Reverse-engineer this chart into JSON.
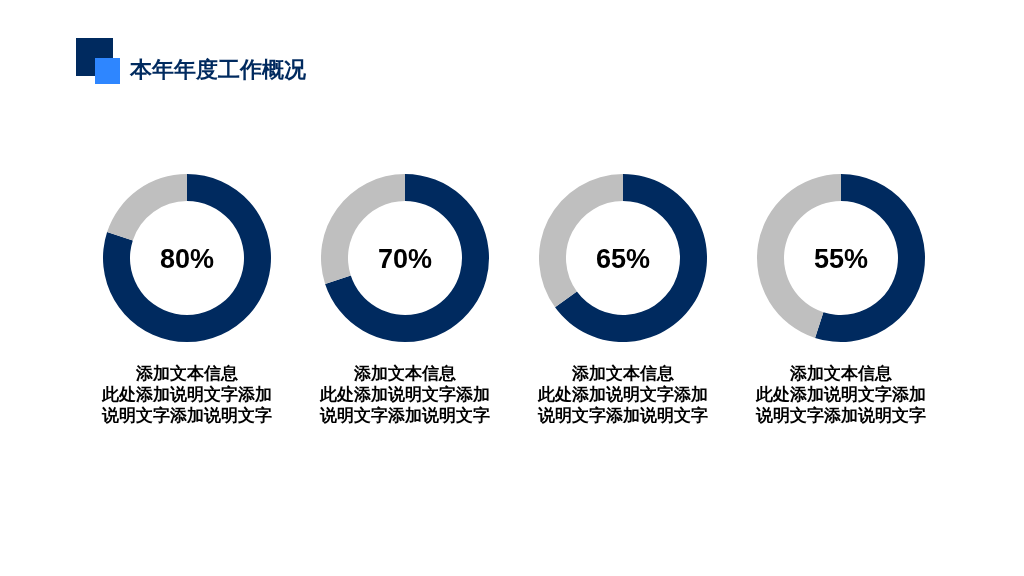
{
  "chart_data": [
    {
      "type": "donut",
      "title": "本年年度工作概况",
      "categories": [
        null,
        null
      ],
      "values": [
        80,
        20
      ],
      "colors": [
        "#002a5f",
        "#bfbfbf"
      ],
      "value_labels": [
        "80%",
        null
      ],
      "annotations": [
        "添加文本信息",
        "此处添加说明文字添加说明文字添加说明文字"
      ]
    },
    {
      "type": "donut",
      "categories": [
        null,
        null
      ],
      "values": [
        70,
        30
      ],
      "colors": [
        "#002a5f",
        "#bfbfbf"
      ],
      "value_labels": [
        "70%",
        null
      ],
      "annotations": [
        "添加文本信息",
        "此处添加说明文字添加说明文字添加说明文字"
      ]
    },
    {
      "type": "donut",
      "categories": [
        null,
        null
      ],
      "values": [
        65,
        35
      ],
      "colors": [
        "#002a5f",
        "#bfbfbf"
      ],
      "value_labels": [
        "65%",
        null
      ],
      "annotations": [
        "添加文本信息",
        "此处添加说明文字添加说明文字添加说明文字"
      ]
    },
    {
      "type": "donut",
      "categories": [
        null,
        null
      ],
      "values": [
        55,
        45
      ],
      "colors": [
        "#002a5f",
        "#bfbfbf"
      ],
      "value_labels": [
        "55%",
        null
      ],
      "annotations": [
        "添加文本信息",
        "此处添加说明文字添加说明文字添加说明文字"
      ]
    }
  ]
}
